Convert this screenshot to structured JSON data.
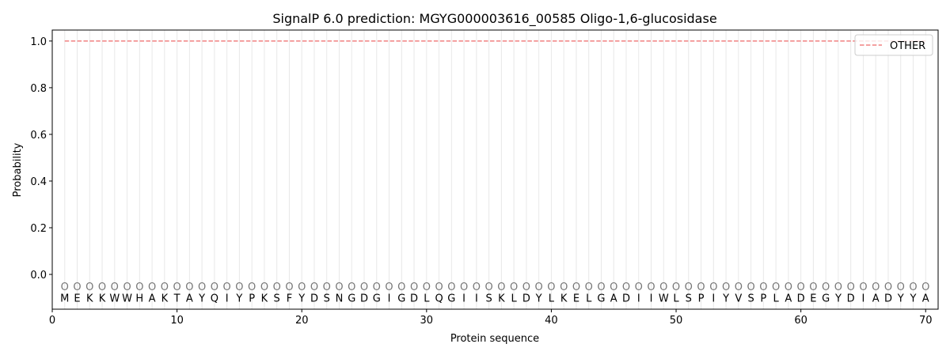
{
  "chart_data": {
    "type": "line",
    "title": "SignalP 6.0 prediction: MGYG000003616_00585 Oligo-1,6-glucosidase",
    "xlabel": "Protein sequence",
    "ylabel": "Probability",
    "xlim": [
      0,
      71
    ],
    "ylim": [
      -0.149,
      1.047
    ],
    "xticks": [
      0,
      10,
      20,
      30,
      40,
      50,
      60,
      70
    ],
    "yticks": [
      0.0,
      0.2,
      0.4,
      0.6,
      0.8,
      1.0
    ],
    "ytick_labels": [
      "0.0",
      "0.2",
      "0.4",
      "0.6",
      "0.8",
      "1.0"
    ],
    "grid": "vertical lines at each residue",
    "legend_position": "top-right",
    "sequence": "MEKKWWHAKTAYQIYPKSFYDSNGDGIGDLQGIISKLDYLKELGADIIWLSPIYVSPLADEGYDIADYYA",
    "region_labels": "OOOOOOOOOOOOOOOOOOOOOOOOOOOOOOOOOOOOOOOOOOOOOOOOOOOOOOOOOOOOOOOOOOOOOO",
    "series": [
      {
        "name": "OTHER",
        "color": "#f08080",
        "style": "dashed",
        "x_range": [
          1,
          70
        ],
        "value": 1.0
      }
    ]
  }
}
